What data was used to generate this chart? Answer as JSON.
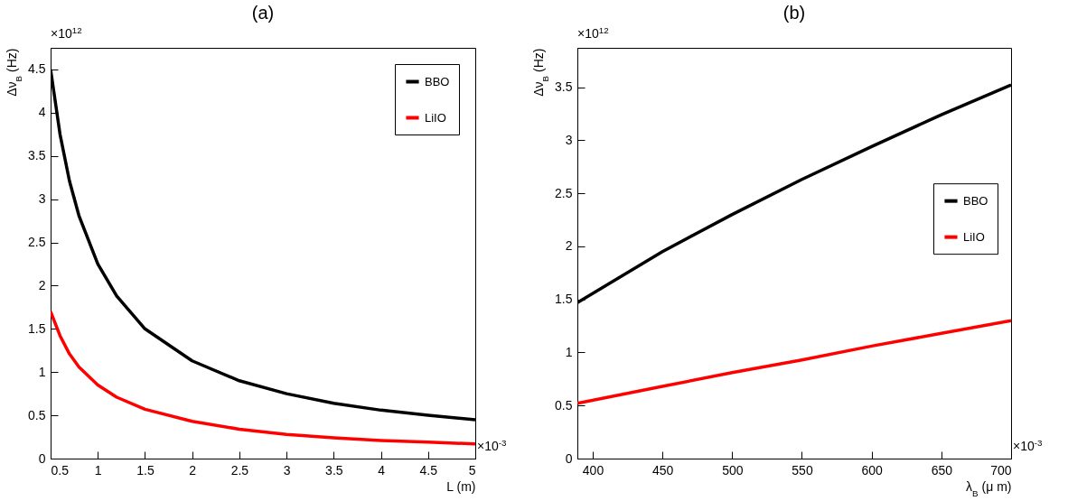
{
  "chart_data": [
    {
      "type": "line",
      "title": "(a)",
      "xlabel": "L (m)",
      "ylabel": "Δν$_{B}$ (Hz)",
      "annotations": [
        "×10$^{12}$",
        "×10$^{-3}$"
      ],
      "legend": "top right",
      "grid": false,
      "marker": "none",
      "line_style": "solid",
      "xlim": [
        0.5,
        5
      ],
      "xticks": [
        0.5,
        1,
        1.5,
        2,
        2.5,
        3,
        3.5,
        4,
        4.5,
        5
      ],
      "ylim": [
        0,
        4.75
      ],
      "yticks": [
        0,
        0.5,
        1,
        1.5,
        2,
        2.5,
        3,
        3.5,
        4,
        4.5
      ],
      "x": [
        0.5,
        0.6,
        0.7,
        0.8,
        1,
        1.2,
        1.5,
        2,
        2.5,
        3,
        3.5,
        4,
        4.5,
        5
      ],
      "series": [
        {
          "name": "BBO",
          "color": "#000000",
          "values": [
            4.5,
            3.75,
            3.21,
            2.81,
            2.25,
            1.88,
            1.5,
            1.13,
            0.9,
            0.75,
            0.64,
            0.56,
            0.5,
            0.45
          ]
        },
        {
          "name": "LiIO",
          "color": "#ff0000",
          "values": [
            1.7,
            1.42,
            1.21,
            1.06,
            0.85,
            0.71,
            0.57,
            0.43,
            0.34,
            0.28,
            0.24,
            0.21,
            0.19,
            0.17
          ]
        }
      ]
    },
    {
      "type": "line",
      "title": "(b)",
      "xlabel": "λ$_{B}$ (μ m)",
      "ylabel": "Δν$_{B}$ (Hz)",
      "annotations": [
        "×10$^{12}$",
        "×10$^{-3}$"
      ],
      "legend": "right",
      "grid": false,
      "marker": "none",
      "line_style": "solid",
      "xlim": [
        389,
        700
      ],
      "xticks": [
        400,
        450,
        500,
        550,
        600,
        650,
        700
      ],
      "ylim": [
        0,
        3.87
      ],
      "yticks": [
        0,
        0.5,
        1,
        1.5,
        2,
        2.5,
        3,
        3.5
      ],
      "x": [
        389,
        450,
        500,
        550,
        600,
        650,
        700
      ],
      "series": [
        {
          "name": "BBO",
          "color": "#000000",
          "values": [
            1.47,
            1.95,
            2.3,
            2.63,
            2.94,
            3.24,
            3.52
          ]
        },
        {
          "name": "LiIO",
          "color": "#ff0000",
          "values": [
            0.52,
            0.68,
            0.81,
            0.93,
            1.06,
            1.18,
            1.3
          ]
        }
      ]
    }
  ]
}
